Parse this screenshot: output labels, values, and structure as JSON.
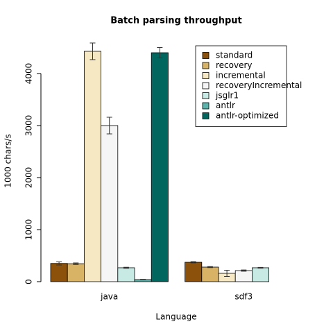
{
  "chart_data": {
    "type": "bar",
    "title": "Batch parsing throughput",
    "x_label": "Language",
    "y_label": "1000 chars/s",
    "categories": [
      "java",
      "sdf3"
    ],
    "series": [
      {
        "name": "standard",
        "color": "#8c510a",
        "values": [
          350,
          373
        ],
        "error": [
          30,
          12
        ]
      },
      {
        "name": "recovery",
        "color": "#d8b365",
        "values": [
          345,
          280
        ],
        "error": [
          15,
          10
        ]
      },
      {
        "name": "incremental",
        "color": "#f6e8c3",
        "values": [
          4427,
          160
        ],
        "error": [
          160,
          60
        ]
      },
      {
        "name": "recoveryIncremental",
        "color": "#f5f5f5",
        "values": [
          3000,
          213
        ],
        "error": [
          160,
          12
        ]
      },
      {
        "name": "jsglr1",
        "color": "#c7eae5",
        "values": [
          267,
          267
        ],
        "error": [
          10,
          8
        ]
      },
      {
        "name": "antlr",
        "color": "#5ab4ac",
        "values": [
          40,
          null
        ],
        "error": [
          5,
          null
        ]
      },
      {
        "name": "antlr-optimized",
        "color": "#01665e",
        "values": [
          4400,
          null
        ],
        "error": [
          100,
          null
        ]
      }
    ],
    "ylim": [
      0,
      4600
    ],
    "yticks": [
      0,
      1000,
      2000,
      3000,
      4000
    ],
    "legend": "top-right"
  }
}
